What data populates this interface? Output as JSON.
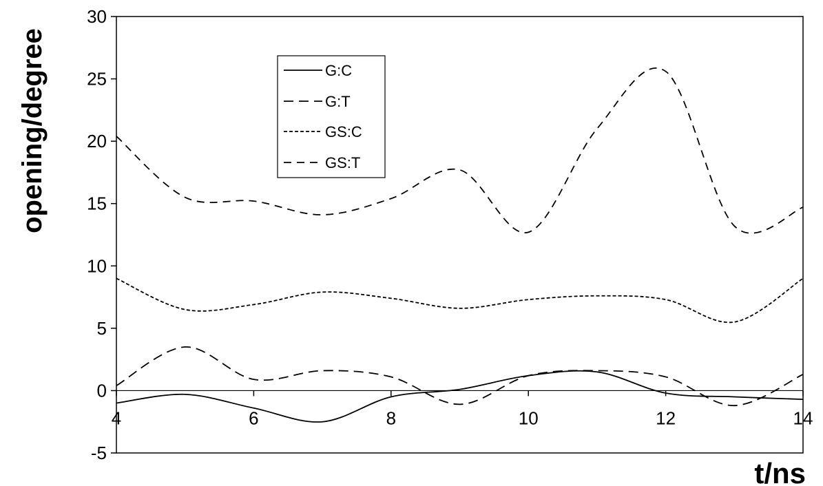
{
  "chart_data": {
    "type": "line",
    "title": "",
    "xlabel": "t/ns",
    "ylabel": "opening/degree",
    "xlim": [
      4,
      14
    ],
    "ylim": [
      -5,
      30
    ],
    "xticks": [
      4,
      6,
      8,
      10,
      12,
      14
    ],
    "yticks": [
      -5,
      0,
      5,
      10,
      15,
      20,
      25,
      30
    ],
    "xtick_labels": [
      "4",
      "6",
      "8",
      "10",
      "12",
      "14"
    ],
    "ytick_labels": [
      "-5",
      "0",
      "5",
      "10",
      "15",
      "20",
      "25",
      "30"
    ],
    "grid": false,
    "legend_position": "top-left",
    "series": [
      {
        "name": "G:C",
        "style": "solid",
        "color": "#000000",
        "x": [
          4,
          5,
          6,
          7,
          8,
          9,
          10,
          11,
          12,
          13,
          14
        ],
        "y": [
          -1.0,
          -0.3,
          -1.4,
          -2.5,
          -0.5,
          0.1,
          1.2,
          1.5,
          -0.2,
          -0.5,
          -0.7
        ]
      },
      {
        "name": "G:T",
        "style": "long-dash",
        "color": "#000000",
        "x": [
          4,
          5,
          6,
          7,
          8,
          9,
          10,
          11,
          12,
          13,
          14
        ],
        "y": [
          0.4,
          3.5,
          0.9,
          1.6,
          1.1,
          -1.1,
          1.2,
          1.6,
          1.1,
          -1.2,
          1.3
        ]
      },
      {
        "name": "GS:C",
        "style": "dotted",
        "color": "#000000",
        "x": [
          4,
          5,
          6,
          7,
          8,
          9,
          10,
          11,
          12,
          13,
          14
        ],
        "y": [
          9.0,
          6.5,
          6.9,
          7.9,
          7.4,
          6.6,
          7.3,
          7.6,
          7.3,
          5.5,
          9.0
        ]
      },
      {
        "name": "GS:T",
        "style": "dashed",
        "color": "#000000",
        "x": [
          4,
          5,
          6,
          7,
          8,
          9,
          10,
          11,
          12,
          13,
          14
        ],
        "y": [
          20.4,
          15.5,
          15.2,
          14.1,
          15.4,
          17.7,
          12.7,
          21.0,
          25.6,
          13.2,
          14.7
        ]
      }
    ]
  }
}
